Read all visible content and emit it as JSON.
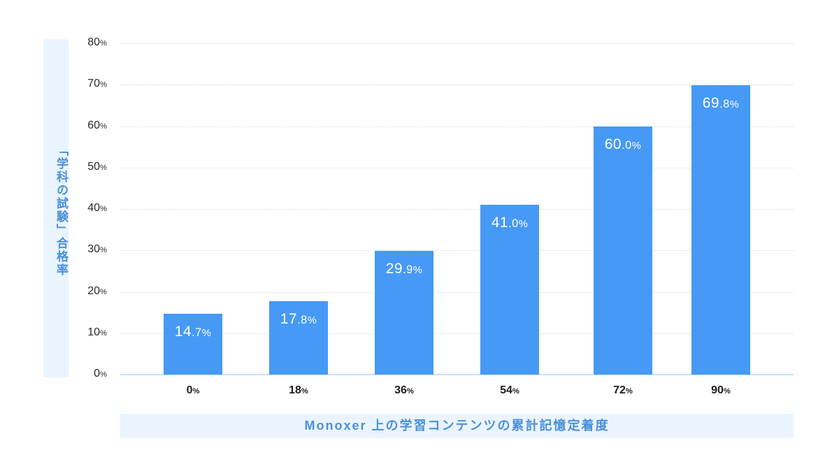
{
  "chart_data": {
    "type": "bar",
    "title": "",
    "xlabel": "Monoxer上の学習コンテンツの累計記憶定着度",
    "ylabel": "「学科の試験」合格率",
    "categories": [
      "0%",
      "18%",
      "36%",
      "54%",
      "72%",
      "90%"
    ],
    "values": [
      14.7,
      17.8,
      29.9,
      41.0,
      60.0,
      69.8
    ],
    "value_labels": [
      {
        "int": "14",
        "dec": ".7",
        "pct": "%"
      },
      {
        "int": "17",
        "dec": ".8",
        "pct": "%"
      },
      {
        "int": "29",
        "dec": ".9",
        "pct": "%"
      },
      {
        "int": "41",
        "dec": ".0",
        "pct": "%"
      },
      {
        "int": "60",
        "dec": ".0",
        "pct": "%"
      },
      {
        "int": "69",
        "dec": ".8",
        "pct": "%"
      }
    ],
    "x_ticks": [
      {
        "num": "0",
        "pct": "%"
      },
      {
        "num": "18",
        "pct": "%"
      },
      {
        "num": "36",
        "pct": "%"
      },
      {
        "num": "54",
        "pct": "%"
      },
      {
        "num": "72",
        "pct": "%"
      },
      {
        "num": "90",
        "pct": "%"
      }
    ],
    "y_ticks": [
      {
        "num": "0",
        "pct": "%"
      },
      {
        "num": "10",
        "pct": "%"
      },
      {
        "num": "20",
        "pct": "%"
      },
      {
        "num": "30",
        "pct": "%"
      },
      {
        "num": "40",
        "pct": "%"
      },
      {
        "num": "50",
        "pct": "%"
      },
      {
        "num": "60",
        "pct": "%"
      },
      {
        "num": "70",
        "pct": "%"
      },
      {
        "num": "80",
        "pct": "%"
      }
    ],
    "ylim": [
      0,
      80
    ],
    "grid": true,
    "legend": "none",
    "colors": {
      "bar": "#4699f5",
      "bar_label": "#ffffff",
      "axis_label_text": "#4a90d9",
      "axis_label_bg": "#eaf4fe",
      "gridline": "#d6dde6",
      "baseline": "#c7def5"
    }
  },
  "axis": {
    "y_label": "「学科の試験」合格率",
    "x_label": "Monoxer 上の学習コンテンツの累計記憶定着度"
  }
}
